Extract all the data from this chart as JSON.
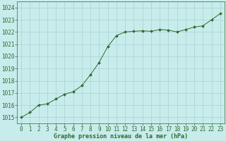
{
  "x": [
    0,
    1,
    2,
    3,
    4,
    5,
    6,
    7,
    8,
    9,
    10,
    11,
    12,
    13,
    14,
    15,
    16,
    17,
    18,
    19,
    20,
    21,
    22,
    23
  ],
  "y": [
    1015.0,
    1015.4,
    1016.0,
    1016.1,
    1016.5,
    1016.9,
    1017.1,
    1017.6,
    1018.5,
    1019.5,
    1020.8,
    1021.7,
    1022.0,
    1022.05,
    1022.1,
    1022.05,
    1022.2,
    1022.15,
    1022.0,
    1022.2,
    1022.4,
    1022.5,
    1023.0,
    1023.5
  ],
  "line_color": "#2d6a2d",
  "marker_color": "#2d6a2d",
  "bg_color": "#c8ecec",
  "grid_color": "#a8d0d0",
  "xlabel": "Graphe pression niveau de la mer (hPa)",
  "xlabel_color": "#2d6a2d",
  "tick_color": "#2d6a2d",
  "ylim": [
    1014.5,
    1024.5
  ],
  "xlim": [
    -0.5,
    23.5
  ],
  "yticks": [
    1015,
    1016,
    1017,
    1018,
    1019,
    1020,
    1021,
    1022,
    1023,
    1024
  ],
  "xticks": [
    0,
    1,
    2,
    3,
    4,
    5,
    6,
    7,
    8,
    9,
    10,
    11,
    12,
    13,
    14,
    15,
    16,
    17,
    18,
    19,
    20,
    21,
    22,
    23
  ],
  "tick_fontsize": 5.5,
  "xlabel_fontsize": 6.0
}
